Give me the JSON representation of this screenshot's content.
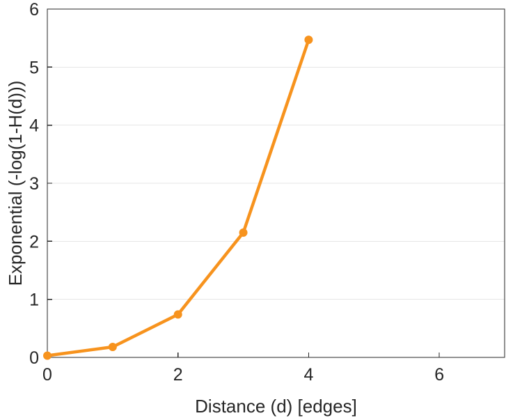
{
  "chart_data": {
    "type": "line",
    "xlabel": "Distance (d) [edges]",
    "ylabel": "Exponential (-log(1-H(d)))",
    "xlim": [
      0,
      7
    ],
    "ylim": [
      0,
      6
    ],
    "xticks": [
      0,
      2,
      4,
      6
    ],
    "yticks": [
      0,
      1,
      2,
      3,
      4,
      5,
      6
    ],
    "xtick_labels": [
      "0",
      "2",
      "4",
      "6"
    ],
    "ytick_labels": [
      "0",
      "1",
      "2",
      "3",
      "4",
      "5",
      "6"
    ],
    "grid": "y-major",
    "series": [
      {
        "x": [
          0,
          1,
          2,
          3,
          4
        ],
        "y": [
          0.03,
          0.18,
          0.74,
          2.15,
          5.47
        ],
        "color": "#f7931e",
        "marker": "circle"
      }
    ]
  }
}
